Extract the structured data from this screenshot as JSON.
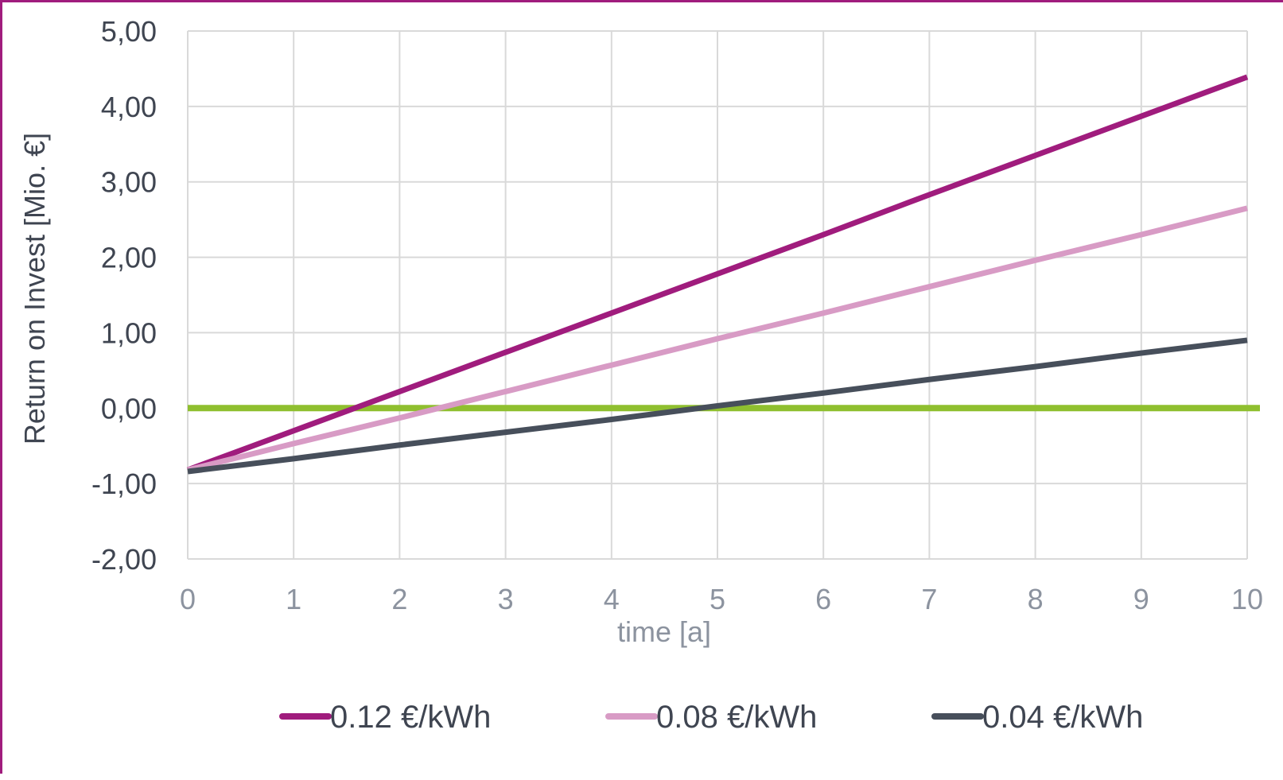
{
  "chart_data": {
    "type": "line",
    "title": "",
    "xlabel": "time [a]",
    "ylabel": "Return on Invest [Mio. €]",
    "x": [
      0,
      1,
      2,
      3,
      4,
      5,
      6,
      7,
      8,
      9,
      10
    ],
    "x_tick_labels": [
      "0",
      "1",
      "2",
      "3",
      "4",
      "5",
      "6",
      "7",
      "8",
      "9",
      "10"
    ],
    "xlim": [
      0,
      10
    ],
    "ylim": [
      -2,
      5
    ],
    "y_ticks": [
      -2,
      -1,
      0,
      1,
      2,
      3,
      4,
      5
    ],
    "y_tick_labels": [
      "-2,00",
      "-1,00",
      "0,00",
      "1,00",
      "2,00",
      "3,00",
      "4,00",
      "5,00"
    ],
    "grid": true,
    "legend_position": "bottom",
    "series": [
      {
        "name": "0.12 €/kWh",
        "color": "#a01c7d",
        "values": [
          -0.82,
          -0.3,
          0.22,
          0.74,
          1.26,
          1.78,
          2.3,
          2.83,
          3.35,
          3.87,
          4.39
        ]
      },
      {
        "name": "0.08 €/kWh",
        "color": "#d89bc5",
        "values": [
          -0.82,
          -0.47,
          -0.13,
          0.22,
          0.57,
          0.92,
          1.26,
          1.61,
          1.96,
          2.3,
          2.65
        ]
      },
      {
        "name": "0.04 €/kWh",
        "color": "#474f5b",
        "values": [
          -0.84,
          -0.67,
          -0.49,
          -0.32,
          -0.15,
          0.03,
          0.2,
          0.38,
          0.55,
          0.73,
          0.9
        ]
      }
    ],
    "reference_line": {
      "y": 0,
      "color": "#8fbf2f"
    }
  }
}
